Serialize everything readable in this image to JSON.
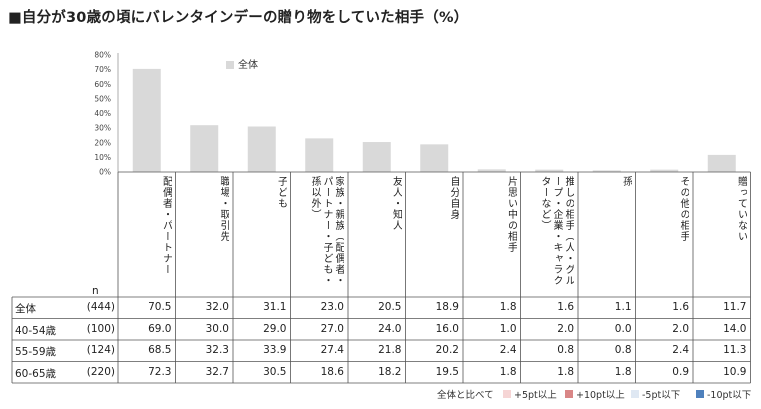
{
  "title": "■自分が30歳の頃にバレンタインデーの贈り物をしていた相手（%）",
  "chart_data": {
    "type": "bar",
    "categories": [
      "配偶者・パートナー",
      "職場・取引先",
      "子ども",
      "家族・親族（配偶者・パートナー・子ども・孫以外）",
      "友人・知人",
      "自分自身",
      "片思い中の相手",
      "推しの相手（人・グループ・企業・キャラクターなど）",
      "孫",
      "その他の相手",
      "贈っていない"
    ],
    "series": [
      {
        "name": "全体",
        "values": [
          70.5,
          32.0,
          31.1,
          23.0,
          20.5,
          18.9,
          1.8,
          1.6,
          1.1,
          1.6,
          11.7
        ]
      }
    ],
    "y_ticks": [
      "0%",
      "10%",
      "20%",
      "30%",
      "40%",
      "50%",
      "60%",
      "70%",
      "80%"
    ],
    "ylim": [
      0,
      80
    ],
    "legend_position": "top",
    "bar_color": "#d9d9d9",
    "table": {
      "n_header": "n",
      "rows": [
        {
          "label": "全体",
          "n": "(444)",
          "values": [
            "70.5",
            "32.0",
            "31.1",
            "23.0",
            "20.5",
            "18.9",
            "1.8",
            "1.6",
            "1.1",
            "1.6",
            "11.7"
          ]
        },
        {
          "label": "40-54歳",
          "n": "(100)",
          "values": [
            "69.0",
            "30.0",
            "29.0",
            "27.0",
            "24.0",
            "16.0",
            "1.0",
            "2.0",
            "0.0",
            "2.0",
            "14.0"
          ]
        },
        {
          "label": "55-59歳",
          "n": "(124)",
          "values": [
            "68.5",
            "32.3",
            "33.9",
            "27.4",
            "21.8",
            "20.2",
            "2.4",
            "0.8",
            "0.8",
            "2.4",
            "11.3"
          ]
        },
        {
          "label": "60-65歳",
          "n": "(220)",
          "values": [
            "72.3",
            "32.7",
            "30.5",
            "18.6",
            "18.2",
            "19.5",
            "1.8",
            "1.8",
            "1.8",
            "0.9",
            "10.9"
          ]
        }
      ]
    },
    "footer": {
      "compare_label": "全体と比べて",
      "items": [
        {
          "label": "+5pt以上",
          "color": "#f6d5d5"
        },
        {
          "label": "+10pt以上",
          "color": "#d98686"
        },
        {
          "label": "-5pt以下",
          "color": "#dfe8f3"
        },
        {
          "label": "-10pt以下",
          "color": "#4f81bd"
        }
      ]
    }
  }
}
